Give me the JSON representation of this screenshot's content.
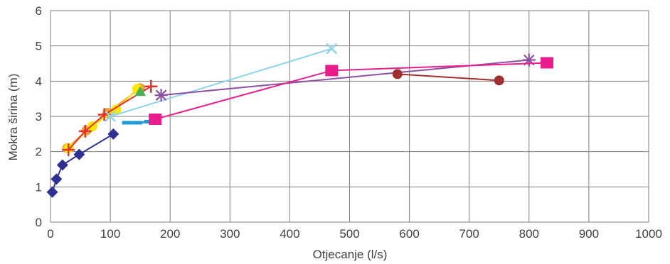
{
  "chart_data": {
    "type": "scatter",
    "xlabel": "Otjecanje (l/s)",
    "ylabel": "Mokra širina (m)",
    "xlim": [
      0,
      1000
    ],
    "ylim": [
      0,
      6
    ],
    "x_ticks": [
      "0",
      "100",
      "200",
      "300",
      "400",
      "500",
      "600",
      "700",
      "800",
      "900",
      "1000"
    ],
    "y_ticks": [
      "0",
      "1",
      "2",
      "3",
      "4",
      "5",
      "6"
    ],
    "grid": true,
    "legend": "none",
    "series": [
      {
        "color": "#2e3192",
        "marker": "diamond",
        "points": [
          [
            3,
            0.85
          ],
          [
            10,
            1.22
          ],
          [
            20,
            1.62
          ],
          [
            48,
            1.92
          ],
          [
            105,
            2.5
          ]
        ]
      },
      {
        "color": "#e8a33d",
        "marker": "circle",
        "points": [
          [
            28,
            2.1
          ],
          [
            60,
            2.6
          ],
          [
            95,
            3.1
          ],
          [
            150,
            3.8
          ]
        ]
      },
      {
        "color": "#ffe600",
        "marker": "circle",
        "points": [
          [
            30,
            2.1
          ],
          [
            70,
            2.72
          ],
          [
            110,
            3.2
          ],
          [
            145,
            3.78
          ]
        ]
      },
      {
        "color": "#e2322b",
        "marker": "plus",
        "points": [
          [
            30,
            2.05
          ],
          [
            58,
            2.58
          ],
          [
            90,
            3.05
          ],
          [
            168,
            3.85
          ]
        ]
      },
      {
        "color": "#4caf50",
        "marker": "triangle",
        "points": [
          [
            150,
            3.7
          ]
        ]
      },
      {
        "color": "#1f9ad6",
        "marker": "dash",
        "points": [
          [
            128,
            2.82
          ],
          [
            145,
            2.82
          ],
          [
            165,
            2.85
          ]
        ]
      },
      {
        "color": "#8fd3e9",
        "marker": "x",
        "points": [
          [
            100,
            3.0
          ],
          [
            470,
            4.92
          ]
        ]
      },
      {
        "color": "#8e4fa3",
        "marker": "star",
        "points": [
          [
            185,
            3.6
          ],
          [
            800,
            4.6
          ]
        ]
      },
      {
        "color": "#a0302d",
        "marker": "circle",
        "points": [
          [
            580,
            4.2
          ],
          [
            750,
            4.02
          ]
        ]
      },
      {
        "color": "#e91e8c",
        "marker": "square",
        "points": [
          [
            175,
            2.92
          ],
          [
            470,
            4.3
          ],
          [
            830,
            4.52
          ]
        ]
      }
    ]
  }
}
